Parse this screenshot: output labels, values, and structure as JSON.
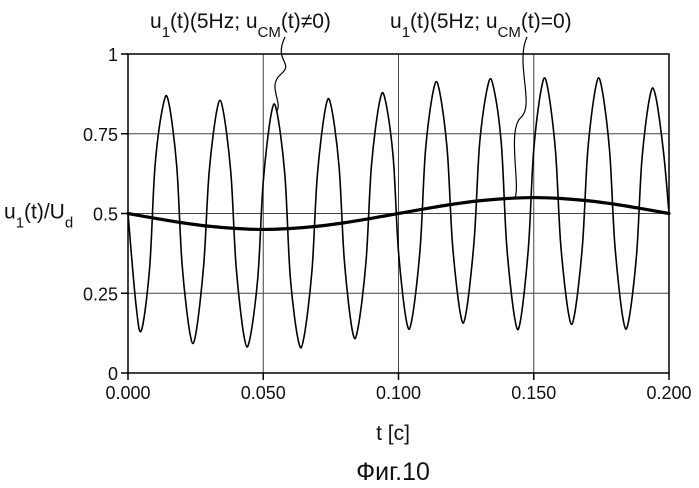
{
  "figure_caption": "Фиг.10",
  "chart_data": {
    "type": "line",
    "xlabel": "t [c]",
    "ylabel": {
      "parts": [
        {
          "t": "u",
          "sub": false
        },
        {
          "t": "1",
          "sub": true
        },
        {
          "t": "(t)/U",
          "sub": false
        },
        {
          "t": "d",
          "sub": true
        }
      ]
    },
    "xlim": [
      0,
      0.2
    ],
    "ylim": [
      0,
      1
    ],
    "xticks": [
      0.0,
      0.05,
      0.1,
      0.15,
      0.2
    ],
    "xtick_labels": [
      "0.000",
      "0.050",
      "0.100",
      "0.150",
      "0.200"
    ],
    "yticks": [
      0,
      0.25,
      0.5,
      0.75,
      1
    ],
    "ytick_labels": [
      "0",
      "0.25",
      "0.5",
      "0.75",
      "1"
    ],
    "grid": true,
    "series": [
      {
        "key": "with_cm",
        "stroke": "#000000",
        "width": 1.6,
        "x": [
          0.0,
          0.003,
          0.005,
          0.008,
          0.01,
          0.013,
          0.015,
          0.018,
          0.02,
          0.023,
          0.025,
          0.028,
          0.03,
          0.033,
          0.035,
          0.038,
          0.04,
          0.043,
          0.045,
          0.048,
          0.05,
          0.053,
          0.055,
          0.058,
          0.06,
          0.063,
          0.065,
          0.068,
          0.07,
          0.073,
          0.075,
          0.078,
          0.08,
          0.083,
          0.085,
          0.088,
          0.09,
          0.093,
          0.095,
          0.098,
          0.1,
          0.103,
          0.105,
          0.108,
          0.11,
          0.113,
          0.115,
          0.118,
          0.12,
          0.123,
          0.125,
          0.128,
          0.13,
          0.133,
          0.135,
          0.138,
          0.14,
          0.143,
          0.145,
          0.148,
          0.15,
          0.153,
          0.155,
          0.158,
          0.16,
          0.163,
          0.165,
          0.168,
          0.17,
          0.173,
          0.175,
          0.178,
          0.18,
          0.183,
          0.185,
          0.188,
          0.19,
          0.193,
          0.195,
          0.198,
          0.2
        ],
        "y": [
          0.5,
          0.21,
          0.135,
          0.33,
          0.65,
          0.84,
          0.85,
          0.65,
          0.34,
          0.12,
          0.12,
          0.34,
          0.63,
          0.83,
          0.83,
          0.63,
          0.33,
          0.11,
          0.105,
          0.3,
          0.6,
          0.815,
          0.82,
          0.62,
          0.3,
          0.1,
          0.11,
          0.32,
          0.62,
          0.83,
          0.84,
          0.65,
          0.35,
          0.13,
          0.14,
          0.35,
          0.65,
          0.85,
          0.86,
          0.68,
          0.38,
          0.16,
          0.17,
          0.39,
          0.7,
          0.89,
          0.89,
          0.7,
          0.4,
          0.18,
          0.19,
          0.42,
          0.72,
          0.9,
          0.9,
          0.72,
          0.4,
          0.17,
          0.16,
          0.39,
          0.7,
          0.9,
          0.9,
          0.7,
          0.4,
          0.18,
          0.18,
          0.4,
          0.7,
          0.9,
          0.9,
          0.7,
          0.4,
          0.17,
          0.16,
          0.37,
          0.67,
          0.87,
          0.87,
          0.69,
          0.5
        ]
      },
      {
        "key": "without_cm",
        "stroke": "#000000",
        "width": 3.2,
        "x": [
          0.0,
          0.01,
          0.02,
          0.03,
          0.04,
          0.05,
          0.06,
          0.07,
          0.08,
          0.09,
          0.1,
          0.11,
          0.12,
          0.13,
          0.14,
          0.15,
          0.16,
          0.17,
          0.18,
          0.19,
          0.2
        ],
        "y": [
          0.5,
          0.485,
          0.471,
          0.46,
          0.453,
          0.45,
          0.453,
          0.46,
          0.471,
          0.485,
          0.5,
          0.515,
          0.529,
          0.54,
          0.547,
          0.55,
          0.547,
          0.54,
          0.529,
          0.515,
          0.5
        ]
      }
    ],
    "annotations": [
      {
        "key": "ann1",
        "parts": [
          {
            "t": "u",
            "sub": false
          },
          {
            "t": "1",
            "sub": true
          },
          {
            "t": "(t)(5Hz; u",
            "sub": false
          },
          {
            "t": "CM",
            "sub": true
          },
          {
            "t": "(t)≠0)",
            "sub": false
          }
        ],
        "pointer": {
          "x": 0.055,
          "y": 0.82
        }
      },
      {
        "key": "ann2",
        "parts": [
          {
            "t": "u",
            "sub": false
          },
          {
            "t": "1",
            "sub": true
          },
          {
            "t": "(t)(5Hz; u",
            "sub": false
          },
          {
            "t": "CM",
            "sub": true
          },
          {
            "t": "(t)=0)",
            "sub": false
          }
        ],
        "pointer": {
          "x": 0.143,
          "y": 0.549
        }
      }
    ]
  }
}
